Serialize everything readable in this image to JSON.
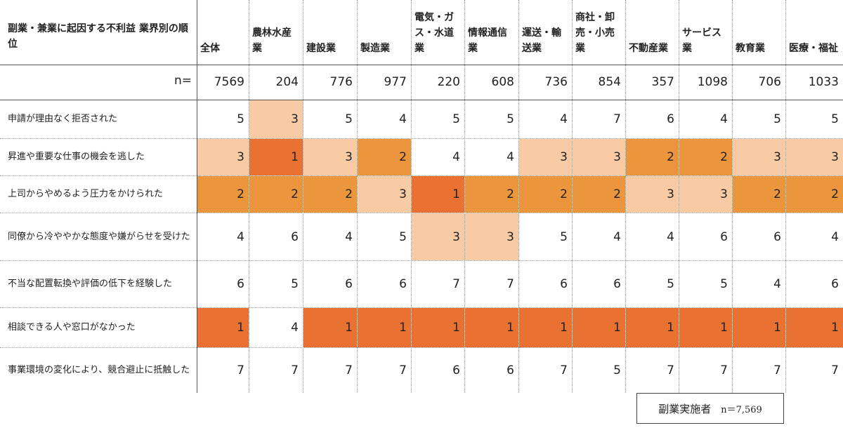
{
  "chart_data": {
    "type": "table",
    "title": "副業・兼業に起因する不利益 業界別の順位",
    "n_label": "n=",
    "columns": [
      "全体",
      "農林水産業",
      "建設業",
      "製造業",
      "電気・ガス・水道業",
      "情報通信業",
      "運送・輸送業",
      "商社・卸売・小売業",
      "不動産業",
      "サービス業",
      "教育業",
      "医療・福祉"
    ],
    "n_values": [
      7569,
      204,
      776,
      977,
      220,
      608,
      736,
      854,
      357,
      1098,
      706,
      1033
    ],
    "rows": [
      {
        "label": "申請が理由なく拒否された",
        "values": [
          5,
          3,
          5,
          4,
          5,
          5,
          4,
          7,
          6,
          4,
          5,
          5
        ]
      },
      {
        "label": "昇進や重要な仕事の機会を逃した",
        "values": [
          3,
          1,
          3,
          2,
          4,
          4,
          3,
          3,
          2,
          2,
          3,
          3
        ]
      },
      {
        "label": "上司からやめるよう圧力をかけられた",
        "values": [
          2,
          2,
          2,
          3,
          1,
          2,
          2,
          2,
          3,
          3,
          2,
          2
        ]
      },
      {
        "label": "同僚から冷ややかな態度や嫌がらせを受けた",
        "values": [
          4,
          6,
          4,
          5,
          3,
          3,
          5,
          4,
          4,
          6,
          6,
          4
        ]
      },
      {
        "label": "不当な配置転換や評価の低下を経験した",
        "values": [
          6,
          5,
          6,
          6,
          7,
          7,
          6,
          6,
          5,
          5,
          4,
          6
        ]
      },
      {
        "label": "相談できる人や窓口がなかった",
        "values": [
          1,
          4,
          1,
          1,
          1,
          1,
          1,
          1,
          1,
          1,
          1,
          1
        ]
      },
      {
        "label": "事業環境の変化により、競合避止に抵触した",
        "values": [
          7,
          7,
          7,
          7,
          6,
          6,
          7,
          5,
          7,
          7,
          7,
          7
        ]
      }
    ],
    "rank_colors": {
      "1": "#e97132",
      "2": "#eb963d",
      "3": "#f9cba4"
    }
  },
  "note": {
    "text": "副業実施者",
    "n": "n＝7,569"
  }
}
